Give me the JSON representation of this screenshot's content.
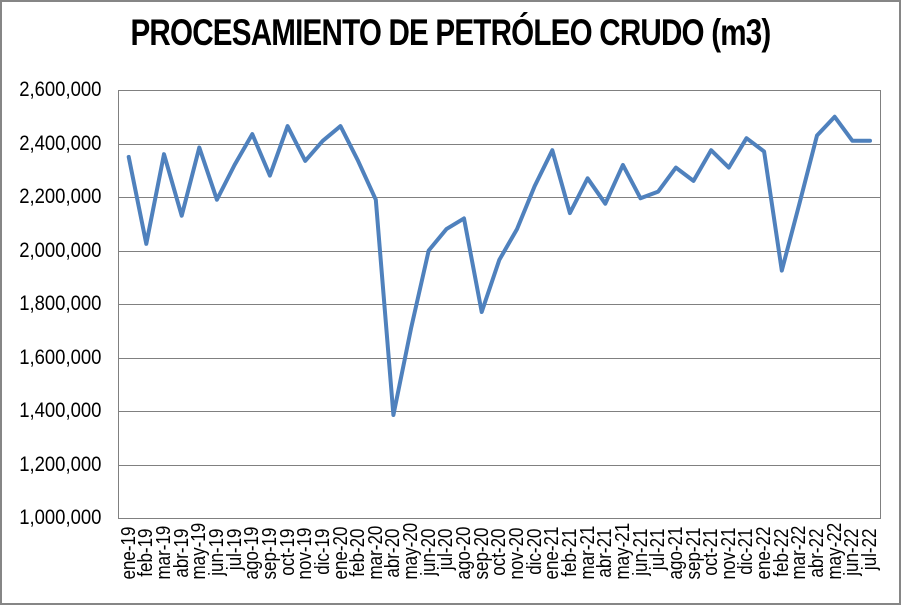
{
  "title": "PROCESAMIENTO DE PETRÓLEO CRUDO (m3)",
  "chart_data": {
    "type": "line",
    "title": "PROCESAMIENTO DE PETRÓLEO CRUDO (m3)",
    "categories": [
      "ene-19",
      "feb-19",
      "mar-19",
      "abr-19",
      "may-19",
      "jun-19",
      "jul-19",
      "ago-19",
      "sep-19",
      "oct-19",
      "nov-19",
      "dic-19",
      "ene-20",
      "feb-20",
      "mar-20",
      "abr-20",
      "may-20",
      "jun-20",
      "jul-20",
      "ago-20",
      "sep-20",
      "oct-20",
      "nov-20",
      "dic-20",
      "ene-21",
      "feb-21",
      "mar-21",
      "abr-21",
      "may-21",
      "jun-21",
      "jul-21",
      "ago-21",
      "sep-21",
      "oct-21",
      "nov-21",
      "dic-21",
      "ene-22",
      "feb-22",
      "mar-22",
      "abr-22",
      "may-22",
      "jun-22",
      "jul-22"
    ],
    "values": [
      2350000,
      2025000,
      2360000,
      2130000,
      2385000,
      2190000,
      2320000,
      2435000,
      2280000,
      2465000,
      2335000,
      2410000,
      2465000,
      2335000,
      2190000,
      1385000,
      1710000,
      2000000,
      2080000,
      2120000,
      1770000,
      1965000,
      2080000,
      2240000,
      2375000,
      2140000,
      2270000,
      2175000,
      2320000,
      2195000,
      2220000,
      2310000,
      2260000,
      2375000,
      2310000,
      2420000,
      2370000,
      1925000,
      2175000,
      2430000,
      2500000,
      2410000,
      2410000
    ],
    "xlabel": "",
    "ylabel": "",
    "ylim": [
      1000000,
      2600000
    ],
    "ytick_step": 200000,
    "ytick_labels": [
      "2,600,000",
      "2,400,000",
      "2,200,000",
      "2,000,000",
      "1,800,000",
      "1,600,000",
      "1,400,000",
      "1,200,000",
      "1,000,000"
    ],
    "grid": true,
    "legend": "none",
    "colors": {
      "line": "#4F81BD",
      "grid": "#808080",
      "plot_border": "#808080",
      "outer_border": "#868686",
      "text": "#000000"
    }
  }
}
